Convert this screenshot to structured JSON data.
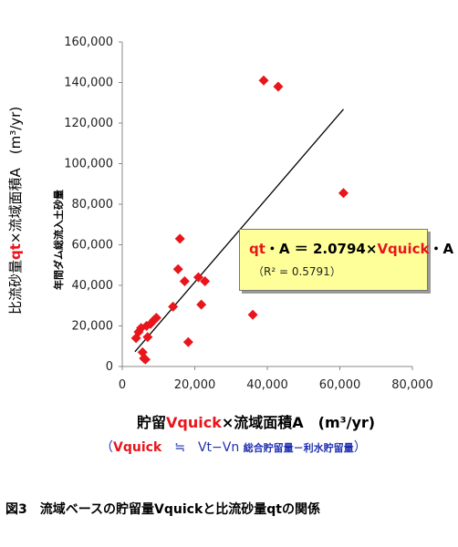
{
  "chart_data": {
    "type": "scatter",
    "x_ticks": [
      "0",
      "20,000",
      "40,000",
      "60,000",
      "80,000"
    ],
    "y_ticks": [
      "0",
      "20,000",
      "40,000",
      "60,000",
      "80,000",
      "100,000",
      "120,000",
      "140,000",
      "160,000"
    ],
    "xlim": [
      0,
      80000
    ],
    "ylim": [
      0,
      160000
    ],
    "grid": false,
    "marker_color": "#e8151b",
    "trend_color": "#000000",
    "points": [
      {
        "x": 3800,
        "y": 14000
      },
      {
        "x": 4500,
        "y": 17000
      },
      {
        "x": 5200,
        "y": 19000
      },
      {
        "x": 5600,
        "y": 7000
      },
      {
        "x": 6000,
        "y": 4000
      },
      {
        "x": 6400,
        "y": 3500
      },
      {
        "x": 6700,
        "y": 20000
      },
      {
        "x": 7000,
        "y": 14500
      },
      {
        "x": 7800,
        "y": 21000
      },
      {
        "x": 8800,
        "y": 23000
      },
      {
        "x": 9400,
        "y": 24000
      },
      {
        "x": 14000,
        "y": 29500
      },
      {
        "x": 15400,
        "y": 48000
      },
      {
        "x": 15900,
        "y": 63000
      },
      {
        "x": 17200,
        "y": 42000
      },
      {
        "x": 18200,
        "y": 12000
      },
      {
        "x": 21000,
        "y": 44000
      },
      {
        "x": 21800,
        "y": 30500
      },
      {
        "x": 22800,
        "y": 42000
      },
      {
        "x": 36000,
        "y": 25500
      },
      {
        "x": 39000,
        "y": 141000
      },
      {
        "x": 43000,
        "y": 138000
      },
      {
        "x": 61000,
        "y": 85500
      }
    ],
    "trend": {
      "slope": 2.0794,
      "x_range": [
        3500,
        61000
      ]
    }
  },
  "equation": {
    "lhs_red": "qt",
    "lhs_rest": "・A ＝ 2.0794×",
    "rhs_red": "Vquick",
    "rhs_rest": "・A",
    "r2": "（R² = 0.5791）"
  },
  "y_axis": {
    "label_pre": "比流砂量",
    "label_red": "qt",
    "label_post": "×流域面積A　(m³/yr)",
    "sublabel": "年間ダム総流入土砂量"
  },
  "x_axis": {
    "label_pre": "貯留",
    "label_red": "Vquick",
    "label_post": "×流域面積A　(m³/yr)"
  },
  "note": {
    "open": "（",
    "red": "Vquick",
    "approx": "　≒　",
    "blue": "Vt−Vn",
    "small": "総合貯留量－利水貯留量",
    "close": "）"
  },
  "caption": "図3　流域ベースの貯留量Vquickと比流砂量qtの関係"
}
